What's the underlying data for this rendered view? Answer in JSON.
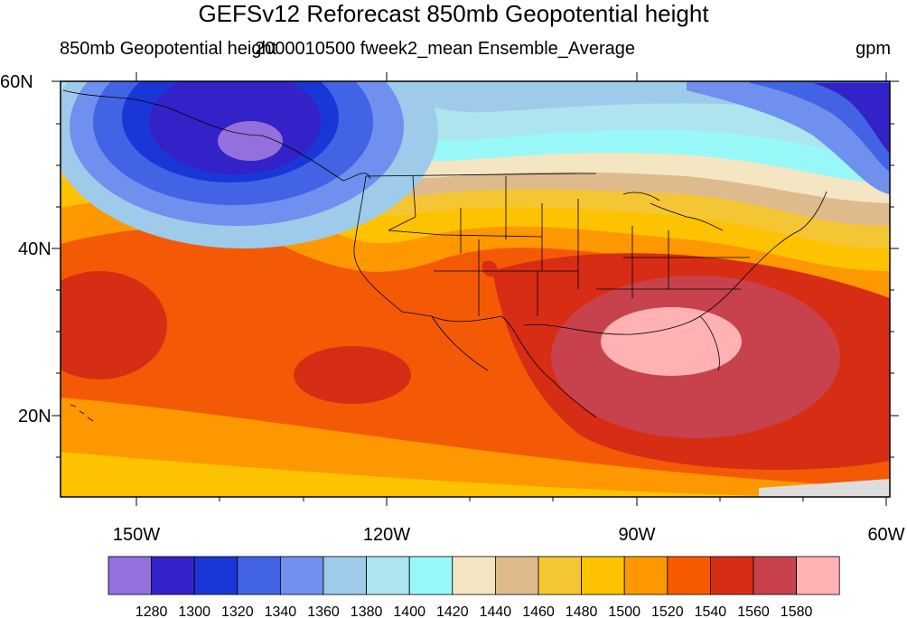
{
  "title": "GEFSv12 Reforecast 850mb Geopotential height",
  "left_string": "850mb Geopotential height",
  "center_string": "2000010500 fweek2_mean Ensemble_Average",
  "right_string": "gpm",
  "map": {
    "lon_range": [
      -160,
      -60
    ],
    "lat_range": [
      10,
      60
    ],
    "lon_tick_labels": [
      "150W",
      "120W",
      "90W",
      "60W"
    ],
    "lat_tick_labels": [
      "20N",
      "40N",
      "60N"
    ],
    "colors": {
      "ocean_background": "#f45a06",
      "coast_lines": "#000000"
    }
  },
  "colorbar": {
    "levels": [
      "1280",
      "1300",
      "1320",
      "1340",
      "1360",
      "1380",
      "1400",
      "1420",
      "1440",
      "1460",
      "1480",
      "1500",
      "1520",
      "1540",
      "1560",
      "1580"
    ],
    "colors": [
      "#9370db",
      "#3322c8",
      "#1b36d6",
      "#4363e5",
      "#6f90ee",
      "#9ecbe9",
      "#ade4ee",
      "#98f8f7",
      "#f4e5c3",
      "#ddbb8d",
      "#f5c633",
      "#fdc200",
      "#fd9800",
      "#f85a00",
      "#d72d14",
      "#c7424c",
      "#ffb1b3"
    ]
  }
}
